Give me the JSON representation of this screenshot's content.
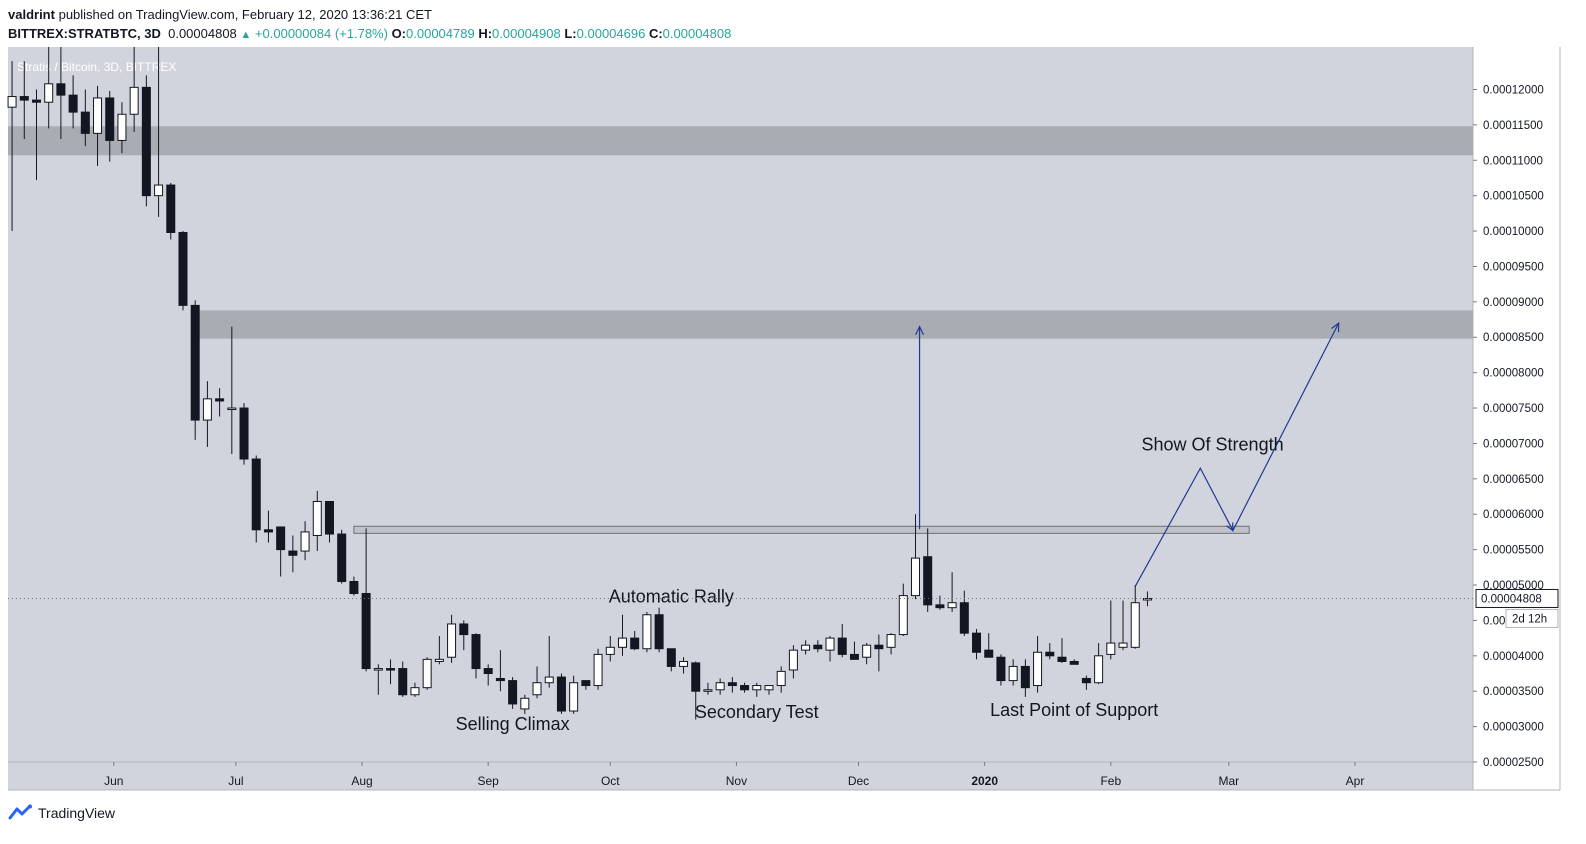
{
  "header": {
    "author": "valdrint",
    "published_text": "published on TradingView.com, February 12, 2020 13:36:21 CET",
    "symbol": "BITTREX:STRATBTC, 3D",
    "last": "0.00004808",
    "change": "+0.00000084 (+1.78%)",
    "o_label": "O:",
    "o_val": "0.00004789",
    "h_label": "H:",
    "h_val": "0.00004908",
    "l_label": "L:",
    "l_val": "0.00004696",
    "c_label": "C:",
    "c_val": "0.00004808"
  },
  "footer": {
    "brand": "TradingView"
  },
  "colors": {
    "background": "#d1d4dc",
    "zone": "#a9acb3",
    "candle_up": "#ffffff",
    "candle_down": "#131722",
    "annotation": "#1f3a93"
  },
  "chart_data": {
    "type": "candlestick",
    "title": "Stratis / Bitcoin, 3D, BITTREX",
    "ylim": [
      2.5e-05,
      0.000126
    ],
    "yticks": [
      "0.00002500",
      "0.00003000",
      "0.00003500",
      "0.00004000",
      "0.00004500",
      "0.00005000",
      "0.00005500",
      "0.00006000",
      "0.00006500",
      "0.00007000",
      "0.00007500",
      "0.00008000",
      "0.00008500",
      "0.00009000",
      "0.00009500",
      "0.00010000",
      "0.00010500",
      "0.00011000",
      "0.00011500",
      "0.00012000"
    ],
    "xticks": [
      "Jun",
      "Jul",
      "Aug",
      "Sep",
      "Oct",
      "Nov",
      "Dec",
      "2020",
      "Feb",
      "Mar",
      "Apr"
    ],
    "x_start": "2019-05-06",
    "x_end": "2020-04-30",
    "last_price_label": "0.00004808",
    "countdown_label": "2d 12h",
    "candles": [
      {
        "d": "2019-05-07",
        "o": 0.0001175,
        "h": 0.000124,
        "l": 0.0001,
        "c": 0.000119
      },
      {
        "d": "2019-05-10",
        "o": 0.000119,
        "h": 0.000124,
        "l": 0.000113,
        "c": 0.0001185
      },
      {
        "d": "2019-05-13",
        "o": 0.0001185,
        "h": 0.00012,
        "l": 0.0001072,
        "c": 0.0001182
      },
      {
        "d": "2019-05-16",
        "o": 0.0001182,
        "h": 0.000126,
        "l": 0.0001145,
        "c": 0.0001208
      },
      {
        "d": "2019-05-19",
        "o": 0.0001208,
        "h": 0.000126,
        "l": 0.000113,
        "c": 0.0001192
      },
      {
        "d": "2019-05-22",
        "o": 0.0001192,
        "h": 0.000122,
        "l": 0.0001145,
        "c": 0.0001168
      },
      {
        "d": "2019-05-25",
        "o": 0.0001168,
        "h": 0.00012,
        "l": 0.000112,
        "c": 0.0001138
      },
      {
        "d": "2019-05-28",
        "o": 0.0001138,
        "h": 0.0001205,
        "l": 0.0001092,
        "c": 0.0001188
      },
      {
        "d": "2019-05-31",
        "o": 0.0001188,
        "h": 0.0001198,
        "l": 0.0001098,
        "c": 0.0001128
      },
      {
        "d": "2019-06-03",
        "o": 0.0001128,
        "h": 0.0001182,
        "l": 0.000111,
        "c": 0.0001165
      },
      {
        "d": "2019-06-06",
        "o": 0.0001165,
        "h": 0.000126,
        "l": 0.000114,
        "c": 0.0001203
      },
      {
        "d": "2019-06-09",
        "o": 0.0001203,
        "h": 0.000122,
        "l": 0.0001035,
        "c": 0.000105
      },
      {
        "d": "2019-06-12",
        "o": 0.000105,
        "h": 0.000126,
        "l": 0.000102,
        "c": 0.0001065
      },
      {
        "d": "2019-06-15",
        "o": 0.0001065,
        "h": 0.0001068,
        "l": 9.88e-05,
        "c": 9.98e-05
      },
      {
        "d": "2019-06-18",
        "o": 9.98e-05,
        "h": 0.0001,
        "l": 8.88e-05,
        "c": 8.95e-05
      },
      {
        "d": "2019-06-21",
        "o": 8.95e-05,
        "h": 9.02e-05,
        "l": 7.05e-05,
        "c": 7.33e-05
      },
      {
        "d": "2019-06-24",
        "o": 7.33e-05,
        "h": 7.88e-05,
        "l": 6.95e-05,
        "c": 7.63e-05
      },
      {
        "d": "2019-06-27",
        "o": 7.63e-05,
        "h": 7.78e-05,
        "l": 7.38e-05,
        "c": 7.6e-05
      },
      {
        "d": "2019-06-30",
        "o": 7.5e-05,
        "h": 8.65e-05,
        "l": 6.85e-05,
        "c": 7.5e-05
      },
      {
        "d": "2019-07-03",
        "o": 7.5e-05,
        "h": 7.57e-05,
        "l": 6.7e-05,
        "c": 6.78e-05
      },
      {
        "d": "2019-07-06",
        "o": 6.78e-05,
        "h": 6.83e-05,
        "l": 5.6e-05,
        "c": 5.78e-05
      },
      {
        "d": "2019-07-09",
        "o": 5.78e-05,
        "h": 6.05e-05,
        "l": 5.6e-05,
        "c": 5.75e-05
      },
      {
        "d": "2019-07-12",
        "o": 5.82e-05,
        "h": 5.82e-05,
        "l": 5.12e-05,
        "c": 5.5e-05
      },
      {
        "d": "2019-07-15",
        "o": 5.48e-05,
        "h": 5.7e-05,
        "l": 5.18e-05,
        "c": 5.42e-05
      },
      {
        "d": "2019-07-18",
        "o": 5.48e-05,
        "h": 5.9e-05,
        "l": 5.35e-05,
        "c": 5.75e-05
      },
      {
        "d": "2019-07-21",
        "o": 5.7e-05,
        "h": 6.33e-05,
        "l": 5.48e-05,
        "c": 6.18e-05
      },
      {
        "d": "2019-07-24",
        "o": 6.18e-05,
        "h": 6.18e-05,
        "l": 5.6e-05,
        "c": 5.72e-05
      },
      {
        "d": "2019-07-27",
        "o": 5.72e-05,
        "h": 5.78e-05,
        "l": 5.02e-05,
        "c": 5.05e-05
      },
      {
        "d": "2019-07-30",
        "o": 5.05e-05,
        "h": 5.12e-05,
        "l": 4.85e-05,
        "c": 4.88e-05
      },
      {
        "d": "2019-08-02",
        "o": 4.88e-05,
        "h": 5.8e-05,
        "l": 3.78e-05,
        "c": 3.82e-05
      },
      {
        "d": "2019-08-05",
        "o": 3.82e-05,
        "h": 3.88e-05,
        "l": 3.45e-05,
        "c": 3.82e-05
      },
      {
        "d": "2019-08-08",
        "o": 3.82e-05,
        "h": 3.95e-05,
        "l": 3.6e-05,
        "c": 3.8e-05
      },
      {
        "d": "2019-08-11",
        "o": 3.82e-05,
        "h": 3.92e-05,
        "l": 3.42e-05,
        "c": 3.45e-05
      },
      {
        "d": "2019-08-14",
        "o": 3.45e-05,
        "h": 3.62e-05,
        "l": 3.42e-05,
        "c": 3.55e-05
      },
      {
        "d": "2019-08-17",
        "o": 3.55e-05,
        "h": 3.98e-05,
        "l": 3.52e-05,
        "c": 3.95e-05
      },
      {
        "d": "2019-08-20",
        "o": 3.92e-05,
        "h": 4.28e-05,
        "l": 3.88e-05,
        "c": 3.95e-05
      },
      {
        "d": "2019-08-23",
        "o": 3.98e-05,
        "h": 4.58e-05,
        "l": 3.9e-05,
        "c": 4.45e-05
      },
      {
        "d": "2019-08-26",
        "o": 4.45e-05,
        "h": 4.5e-05,
        "l": 4.08e-05,
        "c": 4.3e-05
      },
      {
        "d": "2019-08-29",
        "o": 4.3e-05,
        "h": 4.32e-05,
        "l": 3.68e-05,
        "c": 3.82e-05
      },
      {
        "d": "2019-09-01",
        "o": 3.82e-05,
        "h": 3.88e-05,
        "l": 3.58e-05,
        "c": 3.75e-05
      },
      {
        "d": "2019-09-04",
        "o": 3.68e-05,
        "h": 4.08e-05,
        "l": 3.5e-05,
        "c": 3.65e-05
      },
      {
        "d": "2019-09-07",
        "o": 3.65e-05,
        "h": 3.7e-05,
        "l": 3.25e-05,
        "c": 3.32e-05
      },
      {
        "d": "2019-09-10",
        "o": 3.25e-05,
        "h": 3.45e-05,
        "l": 3.18e-05,
        "c": 3.4e-05
      },
      {
        "d": "2019-09-13",
        "o": 3.45e-05,
        "h": 3.85e-05,
        "l": 3.4e-05,
        "c": 3.62e-05
      },
      {
        "d": "2019-09-16",
        "o": 3.62e-05,
        "h": 4.28e-05,
        "l": 3.55e-05,
        "c": 3.7e-05
      },
      {
        "d": "2019-09-19",
        "o": 3.7e-05,
        "h": 3.75e-05,
        "l": 3.18e-05,
        "c": 3.22e-05
      },
      {
        "d": "2019-09-22",
        "o": 3.22e-05,
        "h": 3.72e-05,
        "l": 3.18e-05,
        "c": 3.62e-05
      },
      {
        "d": "2019-09-25",
        "o": 3.65e-05,
        "h": 3.65e-05,
        "l": 3.52e-05,
        "c": 3.58e-05
      },
      {
        "d": "2019-09-28",
        "o": 3.58e-05,
        "h": 4.1e-05,
        "l": 3.52e-05,
        "c": 4.02e-05
      },
      {
        "d": "2019-10-01",
        "o": 4.02e-05,
        "h": 4.28e-05,
        "l": 3.92e-05,
        "c": 4.12e-05
      },
      {
        "d": "2019-10-04",
        "o": 4.12e-05,
        "h": 4.58e-05,
        "l": 4e-05,
        "c": 4.25e-05
      },
      {
        "d": "2019-10-07",
        "o": 4.25e-05,
        "h": 4.35e-05,
        "l": 4.08e-05,
        "c": 4.1e-05
      },
      {
        "d": "2019-10-10",
        "o": 4.1e-05,
        "h": 4.62e-05,
        "l": 4.05e-05,
        "c": 4.58e-05
      },
      {
        "d": "2019-10-13",
        "o": 4.58e-05,
        "h": 4.68e-05,
        "l": 4.05e-05,
        "c": 4.1e-05
      },
      {
        "d": "2019-10-16",
        "o": 4.1e-05,
        "h": 4.1e-05,
        "l": 3.78e-05,
        "c": 3.85e-05
      },
      {
        "d": "2019-10-19",
        "o": 3.85e-05,
        "h": 3.98e-05,
        "l": 3.75e-05,
        "c": 3.92e-05
      },
      {
        "d": "2019-10-22",
        "o": 3.9e-05,
        "h": 3.92e-05,
        "l": 3.1e-05,
        "c": 3.5e-05
      },
      {
        "d": "2019-10-25",
        "o": 3.5e-05,
        "h": 3.62e-05,
        "l": 3.45e-05,
        "c": 3.52e-05
      },
      {
        "d": "2019-10-28",
        "o": 3.52e-05,
        "h": 3.68e-05,
        "l": 3.45e-05,
        "c": 3.62e-05
      },
      {
        "d": "2019-10-31",
        "o": 3.62e-05,
        "h": 3.7e-05,
        "l": 3.48e-05,
        "c": 3.58e-05
      },
      {
        "d": "2019-11-03",
        "o": 3.58e-05,
        "h": 3.62e-05,
        "l": 3.48e-05,
        "c": 3.52e-05
      },
      {
        "d": "2019-11-06",
        "o": 3.52e-05,
        "h": 3.62e-05,
        "l": 3.42e-05,
        "c": 3.58e-05
      },
      {
        "d": "2019-11-09",
        "o": 3.52e-05,
        "h": 3.55e-05,
        "l": 3.45e-05,
        "c": 3.58e-05
      },
      {
        "d": "2019-11-12",
        "o": 3.58e-05,
        "h": 3.85e-05,
        "l": 3.48e-05,
        "c": 3.78e-05
      },
      {
        "d": "2019-11-15",
        "o": 3.8e-05,
        "h": 4.15e-05,
        "l": 3.68e-05,
        "c": 4.08e-05
      },
      {
        "d": "2019-11-18",
        "o": 4.08e-05,
        "h": 4.22e-05,
        "l": 4.02e-05,
        "c": 4.15e-05
      },
      {
        "d": "2019-11-21",
        "o": 4.15e-05,
        "h": 4.22e-05,
        "l": 4.05e-05,
        "c": 4.1e-05
      },
      {
        "d": "2019-11-24",
        "o": 4.08e-05,
        "h": 4.28e-05,
        "l": 3.92e-05,
        "c": 4.25e-05
      },
      {
        "d": "2019-11-27",
        "o": 4.25e-05,
        "h": 4.45e-05,
        "l": 3.98e-05,
        "c": 4.02e-05
      },
      {
        "d": "2019-11-30",
        "o": 4.02e-05,
        "h": 4.2e-05,
        "l": 3.95e-05,
        "c": 3.95e-05
      },
      {
        "d": "2019-12-03",
        "o": 3.98e-05,
        "h": 4.18e-05,
        "l": 3.88e-05,
        "c": 4.15e-05
      },
      {
        "d": "2019-12-06",
        "o": 4.15e-05,
        "h": 4.3e-05,
        "l": 3.78e-05,
        "c": 4.1e-05
      },
      {
        "d": "2019-12-09",
        "o": 4.12e-05,
        "h": 4.32e-05,
        "l": 4.02e-05,
        "c": 4.3e-05
      },
      {
        "d": "2019-12-12",
        "o": 4.3e-05,
        "h": 5.02e-05,
        "l": 4.28e-05,
        "c": 4.85e-05
      },
      {
        "d": "2019-12-15",
        "o": 4.85e-05,
        "h": 6e-05,
        "l": 4.8e-05,
        "c": 5.38e-05
      },
      {
        "d": "2019-12-18",
        "o": 5.4e-05,
        "h": 5.8e-05,
        "l": 4.62e-05,
        "c": 4.72e-05
      },
      {
        "d": "2019-12-21",
        "o": 4.72e-05,
        "h": 4.85e-05,
        "l": 4.65e-05,
        "c": 4.68e-05
      },
      {
        "d": "2019-12-24",
        "o": 4.68e-05,
        "h": 5.18e-05,
        "l": 4.62e-05,
        "c": 4.75e-05
      },
      {
        "d": "2019-12-27",
        "o": 4.75e-05,
        "h": 4.92e-05,
        "l": 4.28e-05,
        "c": 4.32e-05
      },
      {
        "d": "2019-12-30",
        "o": 4.32e-05,
        "h": 4.38e-05,
        "l": 3.95e-05,
        "c": 4.05e-05
      },
      {
        "d": "2020-01-02",
        "o": 4.08e-05,
        "h": 4.32e-05,
        "l": 3.98e-05,
        "c": 3.98e-05
      },
      {
        "d": "2020-01-05",
        "o": 3.98e-05,
        "h": 4.02e-05,
        "l": 3.58e-05,
        "c": 3.65e-05
      },
      {
        "d": "2020-01-08",
        "o": 3.65e-05,
        "h": 3.95e-05,
        "l": 3.58e-05,
        "c": 3.85e-05
      },
      {
        "d": "2020-01-11",
        "o": 3.85e-05,
        "h": 3.95e-05,
        "l": 3.42e-05,
        "c": 3.55e-05
      },
      {
        "d": "2020-01-14",
        "o": 3.58e-05,
        "h": 4.28e-05,
        "l": 3.48e-05,
        "c": 4.05e-05
      },
      {
        "d": "2020-01-17",
        "o": 4.05e-05,
        "h": 4.18e-05,
        "l": 3.95e-05,
        "c": 4e-05
      },
      {
        "d": "2020-01-20",
        "o": 3.98e-05,
        "h": 4.25e-05,
        "l": 3.9e-05,
        "c": 3.92e-05
      },
      {
        "d": "2020-01-23",
        "o": 3.92e-05,
        "h": 3.95e-05,
        "l": 3.88e-05,
        "c": 3.88e-05
      },
      {
        "d": "2020-01-26",
        "o": 3.68e-05,
        "h": 3.72e-05,
        "l": 3.52e-05,
        "c": 3.62e-05
      },
      {
        "d": "2020-01-29",
        "o": 3.62e-05,
        "h": 4.18e-05,
        "l": 3.6e-05,
        "c": 4e-05
      },
      {
        "d": "2020-02-01",
        "o": 4.02e-05,
        "h": 4.78e-05,
        "l": 3.95e-05,
        "c": 4.18e-05
      },
      {
        "d": "2020-02-04",
        "o": 4.12e-05,
        "h": 4.78e-05,
        "l": 4.08e-05,
        "c": 4.18e-05
      },
      {
        "d": "2020-02-07",
        "o": 4.12e-05,
        "h": 5e-05,
        "l": 4.1e-05,
        "c": 4.75e-05
      },
      {
        "d": "2020-02-10",
        "o": 4.79e-05,
        "h": 4.91e-05,
        "l": 4.7e-05,
        "c": 4.81e-05
      }
    ],
    "zones": [
      {
        "from": "2019-05-06",
        "to": "2020-04-30",
        "y_low": 0.0001107,
        "y_high": 0.0001148
      },
      {
        "from": "2019-06-20",
        "to": "2020-04-30",
        "y_low": 8.48e-05,
        "y_high": 8.88e-05
      },
      {
        "from": "2019-07-30",
        "to": "2020-03-06",
        "y_low": 5.73e-05,
        "y_high": 5.83e-05
      }
    ],
    "annotations": [
      {
        "text": "Automatic Rally",
        "d": "2019-10-16",
        "y": 4.75e-05
      },
      {
        "text": "Selling Climax",
        "d": "2019-09-07",
        "y": 2.95e-05
      },
      {
        "text": "Secondary Test",
        "d": "2019-11-06",
        "y": 3.12e-05
      },
      {
        "text": "Last Point of Support",
        "d": "2020-01-23",
        "y": 3.15e-05
      },
      {
        "text": "Show Of Strength",
        "d": "2020-02-26",
        "y": 6.9e-05
      }
    ],
    "arrows": [
      {
        "points": [
          [
            "2019-12-16",
            5.79e-05
          ],
          [
            "2019-12-16",
            8.65e-05
          ]
        ]
      },
      {
        "points": [
          [
            "2020-02-07",
            4.98e-05
          ],
          [
            "2020-02-23",
            6.65e-05
          ],
          [
            "2020-03-02",
            5.77e-05
          ],
          [
            "2020-03-28",
            8.7e-05
          ]
        ]
      }
    ]
  }
}
